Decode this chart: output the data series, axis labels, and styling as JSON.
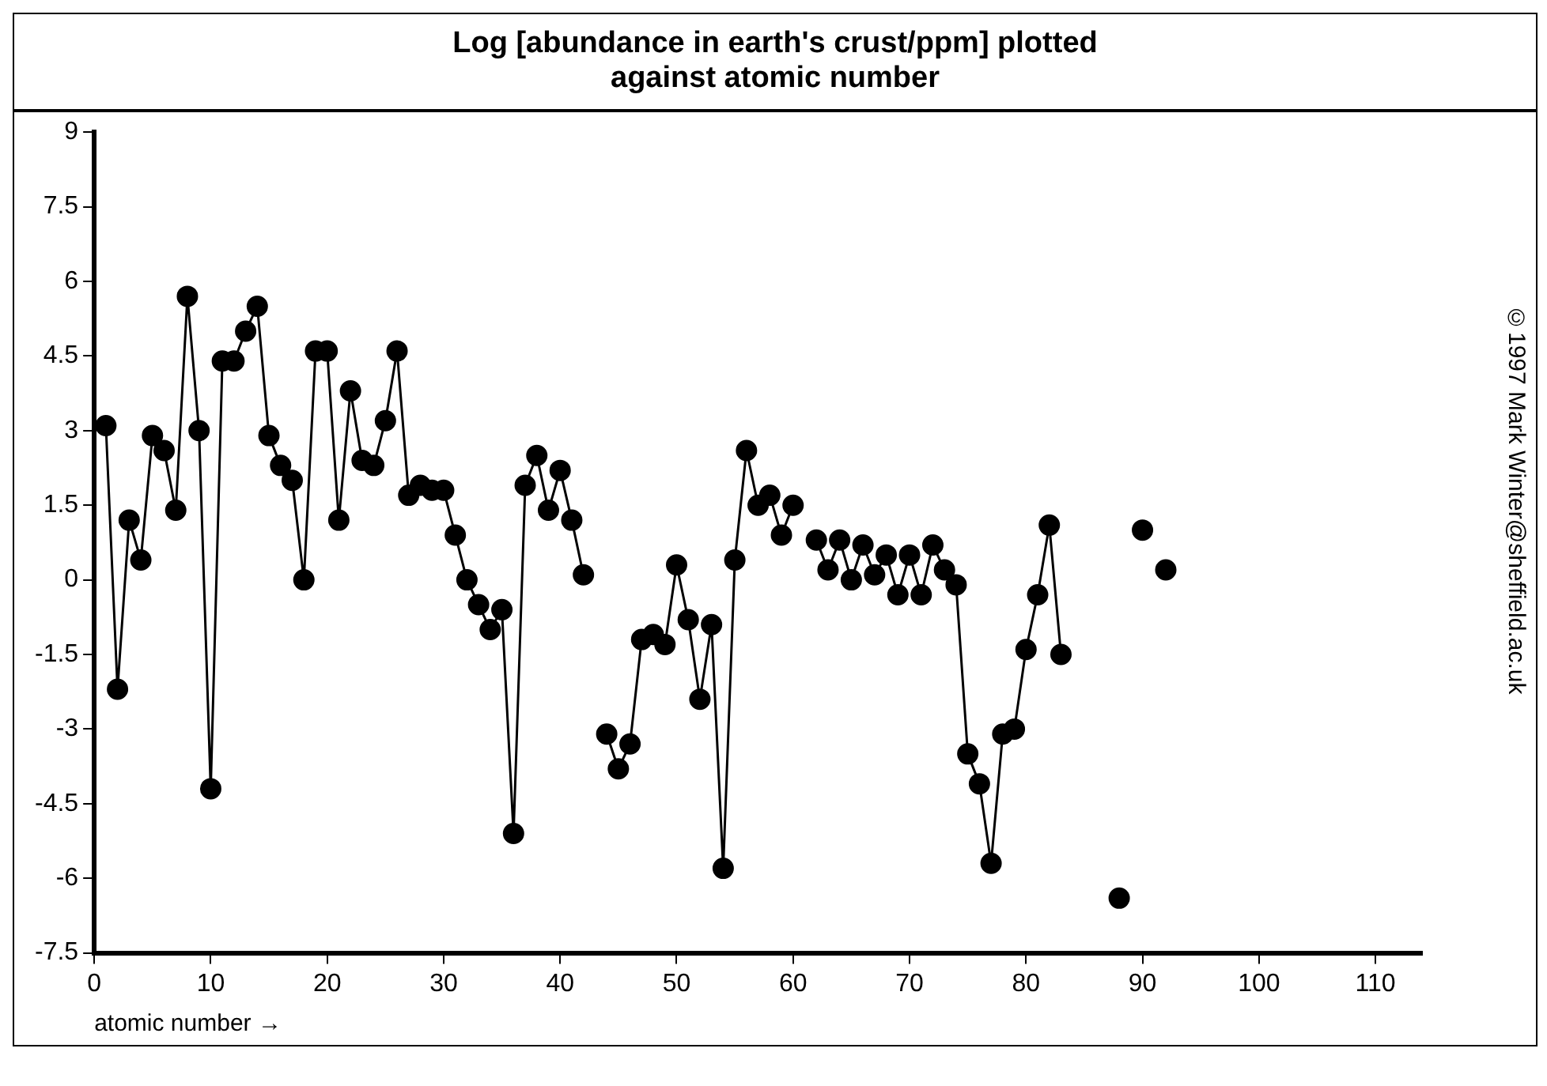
{
  "chart_data": {
    "type": "line",
    "title": "Log [abundance in earth's crust/ppm] plotted against atomic number",
    "xlabel": "atomic number →",
    "annotations": [
      "©1997 Mark Winter@sheffield.ac.uk"
    ],
    "x": [
      1,
      2,
      3,
      4,
      5,
      6,
      7,
      8,
      9,
      10,
      11,
      12,
      13,
      14,
      15,
      16,
      17,
      18,
      19,
      20,
      21,
      22,
      23,
      24,
      25,
      26,
      27,
      28,
      29,
      30,
      31,
      32,
      33,
      34,
      35,
      36,
      37,
      38,
      39,
      40,
      41,
      42,
      43,
      44,
      45,
      46,
      47,
      48,
      49,
      50,
      51,
      52,
      53,
      54,
      55,
      56,
      57,
      58,
      59,
      60,
      61,
      62,
      63,
      64,
      65,
      66,
      67,
      68,
      69,
      70,
      71,
      72,
      73,
      74,
      75,
      76,
      77,
      78,
      79,
      80,
      81,
      82,
      83,
      84,
      85,
      86,
      87,
      88,
      89,
      90,
      91,
      92
    ],
    "series": [
      {
        "color": "#000000",
        "values": [
          3.1,
          -2.2,
          1.2,
          0.4,
          2.9,
          2.6,
          1.4,
          5.7,
          3.0,
          -4.2,
          4.4,
          4.4,
          5.0,
          5.5,
          2.9,
          2.3,
          2.0,
          0.0,
          4.6,
          4.6,
          1.2,
          3.8,
          2.4,
          2.3,
          3.2,
          4.6,
          1.7,
          1.9,
          1.8,
          1.8,
          0.9,
          0.0,
          -0.5,
          -1.0,
          -0.6,
          -5.1,
          1.9,
          2.5,
          1.4,
          2.2,
          1.2,
          0.1,
          null,
          -3.1,
          -3.8,
          -3.3,
          -1.2,
          -1.1,
          -1.3,
          0.3,
          -0.8,
          -2.4,
          -0.9,
          -5.8,
          0.4,
          2.6,
          1.5,
          1.7,
          0.9,
          1.5,
          null,
          0.8,
          0.2,
          0.8,
          0.0,
          0.7,
          0.1,
          0.5,
          -0.3,
          0.5,
          -0.3,
          0.7,
          0.2,
          -0.1,
          -3.5,
          -4.1,
          -5.7,
          -3.1,
          -3.0,
          -1.4,
          -0.3,
          1.1,
          -1.5,
          null,
          null,
          null,
          null,
          -6.4,
          null,
          1.0,
          null,
          0.2
        ]
      }
    ],
    "xlim": [
      0,
      114
    ],
    "xticks": [
      0,
      10,
      20,
      30,
      40,
      50,
      60,
      70,
      80,
      90,
      100,
      110
    ],
    "ylim": [
      -7.5,
      9
    ],
    "yticks": [
      -7.5,
      -6,
      -4.5,
      -3,
      -1.5,
      0,
      1.5,
      3,
      4.5,
      6,
      7.5,
      9
    ],
    "grid": false,
    "legend": false,
    "marker": "circle",
    "line_style": "solid"
  }
}
